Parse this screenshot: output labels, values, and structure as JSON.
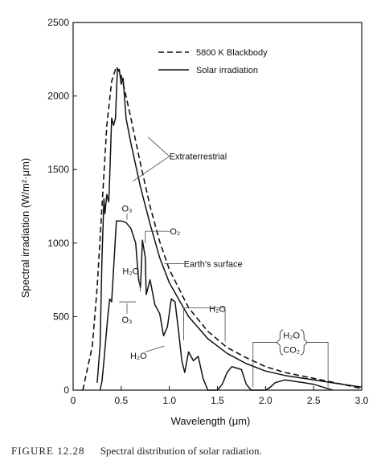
{
  "chart_data": {
    "type": "line",
    "xlabel": "Wavelength (μm)",
    "ylabel": "Spectral irradiation (W/m²·μm)",
    "xlim": [
      0,
      3.0
    ],
    "ylim": [
      0,
      2500
    ],
    "xticks": [
      0,
      0.5,
      1.0,
      1.5,
      2.0,
      2.5,
      3.0
    ],
    "xtick_labels": [
      "0",
      "0.5",
      "1.0",
      "1.5",
      "2.0",
      "2.5",
      "3.0"
    ],
    "yticks": [
      0,
      500,
      1000,
      1500,
      2000,
      2500
    ],
    "ytick_labels": [
      "0",
      "500",
      "1000",
      "1500",
      "2000",
      "2500"
    ],
    "grid": false,
    "legend_position": "top-right",
    "series": [
      {
        "name": "5800 K Blackbody",
        "style": "dashed",
        "x": [
          0.1,
          0.2,
          0.25,
          0.3,
          0.35,
          0.4,
          0.45,
          0.5,
          0.55,
          0.6,
          0.7,
          0.8,
          0.9,
          1.0,
          1.2,
          1.4,
          1.6,
          1.8,
          2.0,
          2.2,
          2.5,
          2.8,
          3.0
        ],
        "y": [
          0,
          300,
          700,
          1250,
          1800,
          2100,
          2200,
          2140,
          2000,
          1850,
          1540,
          1250,
          1010,
          820,
          560,
          400,
          290,
          220,
          160,
          120,
          80,
          40,
          10
        ]
      },
      {
        "name": "Solar irradiation",
        "label": "Extraterrestrial",
        "style": "solid",
        "x": [
          0.25,
          0.28,
          0.3,
          0.32,
          0.33,
          0.35,
          0.37,
          0.38,
          0.4,
          0.42,
          0.44,
          0.46,
          0.48,
          0.5,
          0.52,
          0.55,
          0.6,
          0.7,
          0.8,
          0.9,
          1.0,
          1.2,
          1.4,
          1.6,
          1.8,
          2.0,
          2.2,
          2.5,
          2.8,
          3.0
        ],
        "y": [
          50,
          300,
          900,
          1300,
          1200,
          1330,
          1280,
          1450,
          1850,
          1800,
          1850,
          2180,
          2180,
          2080,
          2120,
          1850,
          1680,
          1380,
          1130,
          900,
          730,
          500,
          350,
          250,
          180,
          130,
          100,
          70,
          40,
          20
        ]
      },
      {
        "name": "Earth's surface",
        "label": "Earth's surface",
        "style": "solid",
        "x": [
          0.28,
          0.3,
          0.32,
          0.34,
          0.36,
          0.38,
          0.4,
          0.45,
          0.5,
          0.55,
          0.6,
          0.65,
          0.68,
          0.7,
          0.72,
          0.75,
          0.76,
          0.78,
          0.8,
          0.85,
          0.9,
          0.94,
          0.98,
          1.02,
          1.06,
          1.1,
          1.13,
          1.16,
          1.2,
          1.25,
          1.3,
          1.35,
          1.4,
          1.45,
          1.5,
          1.55,
          1.6,
          1.65,
          1.7,
          1.75,
          1.8,
          1.85,
          1.9,
          1.95,
          2.0,
          2.05,
          2.1,
          2.2,
          2.3,
          2.4,
          2.5,
          2.6,
          2.65,
          2.7
        ],
        "y": [
          0,
          60,
          200,
          350,
          500,
          620,
          600,
          1150,
          1150,
          1140,
          1100,
          1000,
          750,
          700,
          1020,
          900,
          650,
          700,
          750,
          580,
          520,
          370,
          430,
          620,
          600,
          380,
          200,
          120,
          260,
          200,
          230,
          80,
          0,
          0,
          0,
          40,
          120,
          160,
          150,
          140,
          40,
          0,
          0,
          0,
          0,
          20,
          50,
          70,
          60,
          50,
          40,
          20,
          10,
          0
        ]
      }
    ],
    "annotations": [
      {
        "text": "Extraterrestrial",
        "x": 1.0,
        "y": 1590
      },
      {
        "text": "O₃",
        "x": 0.56,
        "y": 1235
      },
      {
        "text": "O₂",
        "x": 1.06,
        "y": 1080
      },
      {
        "text": "H₂O",
        "x": 0.6,
        "y": 810
      },
      {
        "text": "Earth's surface",
        "x": 1.15,
        "y": 860
      },
      {
        "text": "H₂O",
        "x": 1.5,
        "y": 555
      },
      {
        "text": "O₃",
        "x": 0.56,
        "y": 480
      },
      {
        "text": "H₂O",
        "x": 0.68,
        "y": 235
      },
      {
        "text": "H₂O",
        "x": 2.27,
        "y": 375
      },
      {
        "text": "CO₂",
        "x": 2.27,
        "y": 275
      }
    ]
  },
  "caption": {
    "figure_label": "FIGURE 12.28",
    "text": "Spectral distribution of solar radiation."
  }
}
